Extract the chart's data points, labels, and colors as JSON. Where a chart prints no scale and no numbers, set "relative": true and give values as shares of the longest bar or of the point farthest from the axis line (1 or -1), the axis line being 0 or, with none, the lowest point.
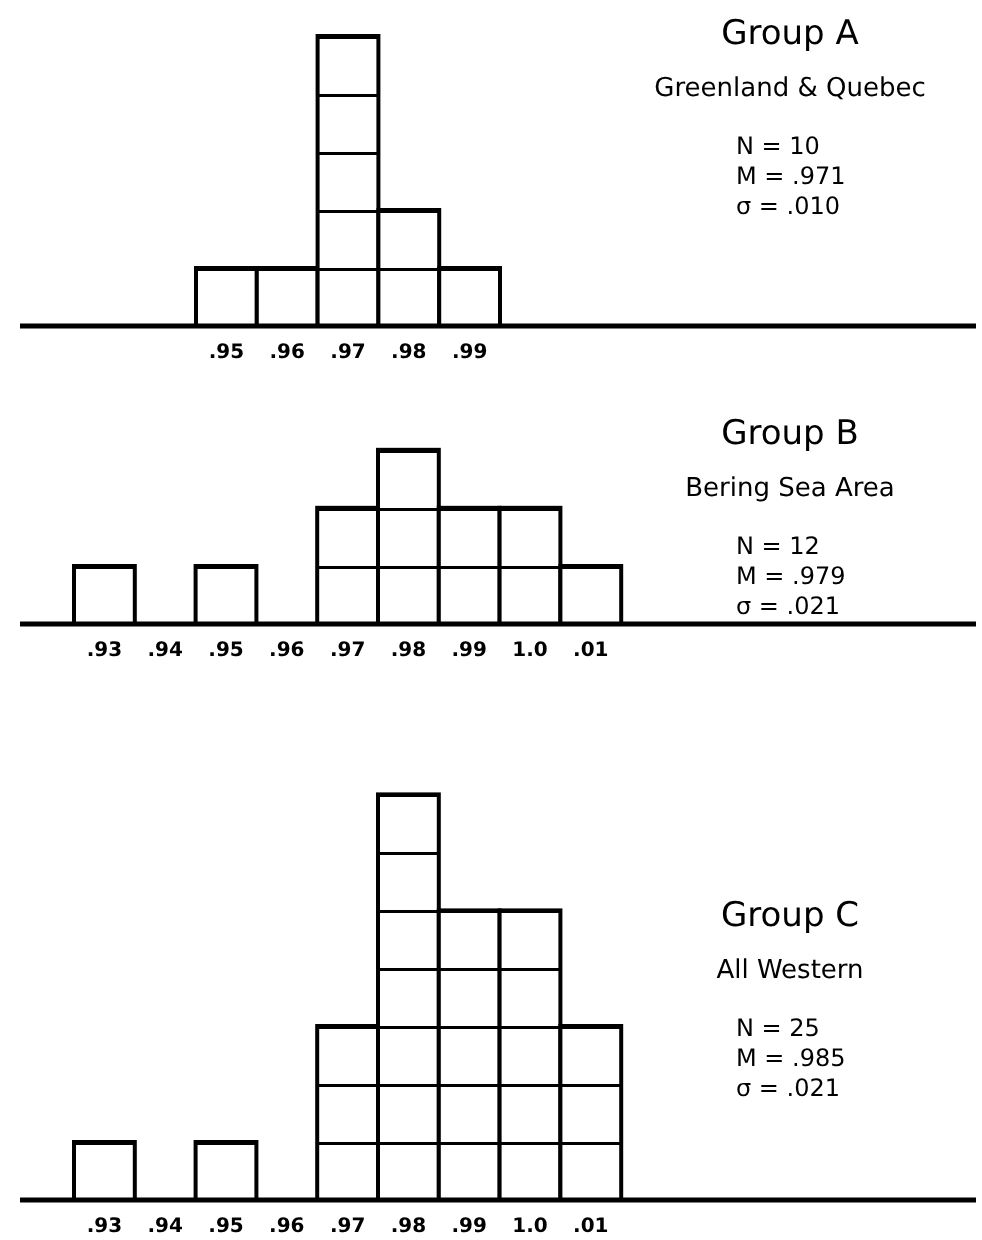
{
  "chart_data": [
    {
      "type": "bar",
      "relative": true,
      "categories": [
        ".95",
        ".96",
        ".97",
        ".98",
        ".99"
      ],
      "values": [
        0.2,
        0.2,
        1,
        0.4,
        0.2
      ],
      "color": "#000000",
      "annotations": [
        "Group A",
        "Greenland & Quebec",
        "N = 10",
        "M = .971",
        "σ = .010"
      ]
    },
    {
      "type": "bar",
      "relative": true,
      "categories": [
        ".93",
        ".94",
        ".95",
        ".96",
        ".97",
        ".98",
        ".99",
        "1.0",
        ".01"
      ],
      "values": [
        0.333,
        0,
        0.333,
        0,
        0.667,
        1,
        0.667,
        0.667,
        0.333
      ],
      "color": "#000000",
      "annotations": [
        "Group B",
        "Bering Sea Area",
        "N = 12",
        "M = .979",
        "σ = .021"
      ]
    },
    {
      "type": "bar",
      "relative": true,
      "categories": [
        ".93",
        ".94",
        ".95",
        ".96",
        ".97",
        ".98",
        ".99",
        "1.0",
        ".01"
      ],
      "values": [
        0.143,
        0,
        0.143,
        0,
        0.429,
        1,
        0.714,
        0.714,
        0.429
      ],
      "color": "#000000",
      "annotations": [
        "Group C",
        "All Western",
        "N = 25",
        "M = .985",
        "σ = .021"
      ]
    }
  ]
}
